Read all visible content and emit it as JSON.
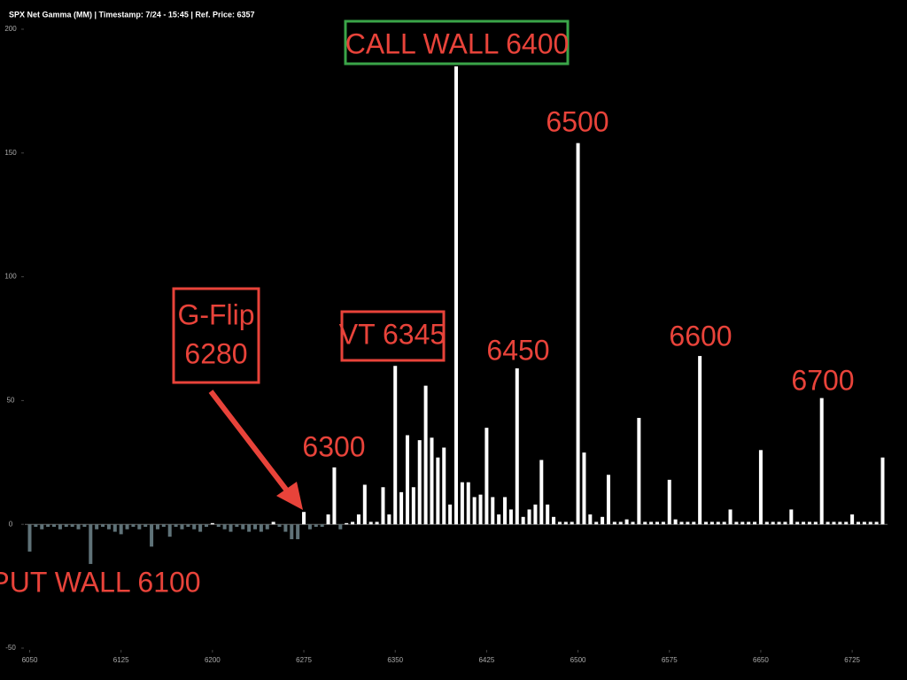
{
  "chart_data": {
    "type": "bar",
    "title": "SPX Net Gamma (MM) | Timestamp: 7/24 - 15:45 | Ref. Price: 6357",
    "x": [
      6050,
      6055,
      6060,
      6065,
      6070,
      6075,
      6080,
      6085,
      6090,
      6095,
      6100,
      6105,
      6110,
      6115,
      6120,
      6125,
      6130,
      6135,
      6140,
      6145,
      6150,
      6155,
      6160,
      6165,
      6170,
      6175,
      6180,
      6185,
      6190,
      6195,
      6200,
      6205,
      6210,
      6215,
      6220,
      6225,
      6230,
      6235,
      6240,
      6245,
      6250,
      6255,
      6260,
      6265,
      6270,
      6275,
      6280,
      6285,
      6290,
      6295,
      6300,
      6305,
      6310,
      6315,
      6320,
      6325,
      6330,
      6335,
      6340,
      6345,
      6350,
      6355,
      6360,
      6365,
      6370,
      6375,
      6380,
      6385,
      6390,
      6395,
      6400,
      6405,
      6410,
      6415,
      6420,
      6425,
      6430,
      6435,
      6440,
      6445,
      6450,
      6455,
      6460,
      6465,
      6470,
      6475,
      6480,
      6485,
      6490,
      6495,
      6500,
      6505,
      6510,
      6515,
      6520,
      6525,
      6530,
      6535,
      6540,
      6545,
      6550,
      6555,
      6560,
      6565,
      6570,
      6575,
      6580,
      6585,
      6590,
      6595,
      6600,
      6605,
      6610,
      6615,
      6620,
      6625,
      6630,
      6635,
      6640,
      6645,
      6650,
      6655,
      6660,
      6665,
      6670,
      6675,
      6680,
      6685,
      6690,
      6695,
      6700,
      6705,
      6710,
      6715,
      6720,
      6725,
      6730,
      6735,
      6740,
      6745,
      6750
    ],
    "values": [
      -11,
      -1,
      -2,
      -1,
      -1,
      -2,
      -1,
      -1,
      -2,
      -1,
      -16,
      -2,
      -1,
      -2,
      -3,
      -4,
      -2,
      -1,
      -2,
      -1,
      -9,
      -2,
      -1,
      -5,
      -1,
      -2,
      -1,
      -2,
      -3,
      -1,
      0.5,
      -1,
      -2,
      -3,
      -1,
      -2,
      -3,
      -2,
      -3,
      -2,
      1,
      -1,
      -3,
      -6,
      -6,
      5,
      -2,
      -1,
      -1,
      4,
      23,
      -2,
      0.5,
      1,
      4,
      16,
      1,
      1,
      15,
      4,
      64,
      13,
      36,
      15,
      34,
      56,
      35,
      27,
      31,
      8,
      185,
      17,
      17,
      11,
      12,
      39,
      11,
      4,
      11,
      6,
      63,
      3,
      6,
      8,
      26,
      8,
      3,
      1,
      1,
      1,
      154,
      29,
      4,
      1,
      3,
      20,
      1,
      1,
      2,
      1,
      43,
      1,
      1,
      1,
      1,
      18,
      2,
      1,
      1,
      1,
      68,
      1,
      1,
      1,
      1,
      6,
      1,
      1,
      1,
      1,
      30,
      1,
      1,
      1,
      1,
      6,
      1,
      1,
      1,
      1,
      51,
      1,
      1,
      1,
      1,
      4,
      1,
      1,
      1,
      1,
      27
    ],
    "positive_color": "#ffffff",
    "negative_color": "#5f7278",
    "xlim": [
      6046,
      6754
    ],
    "xticks": [
      6050,
      6125,
      6200,
      6275,
      6350,
      6425,
      6500,
      6575,
      6650,
      6725
    ],
    "ylim": [
      -50,
      200
    ],
    "yticks": [
      200,
      150,
      100,
      50,
      0,
      -50
    ],
    "annotations": [
      {
        "text": "CALL WALL 6400",
        "box_color": "#3aa548"
      },
      {
        "text": "6500"
      },
      {
        "text": "6450"
      },
      {
        "text": "6600"
      },
      {
        "text": "6700"
      },
      {
        "text": "6300"
      },
      {
        "text": "VT 6345",
        "box_color": "#e8433a"
      },
      {
        "lines": [
          "G-Flip",
          "6280"
        ],
        "box_color": "#e8433a"
      },
      {
        "text": "PUT WALL 6100"
      }
    ]
  }
}
